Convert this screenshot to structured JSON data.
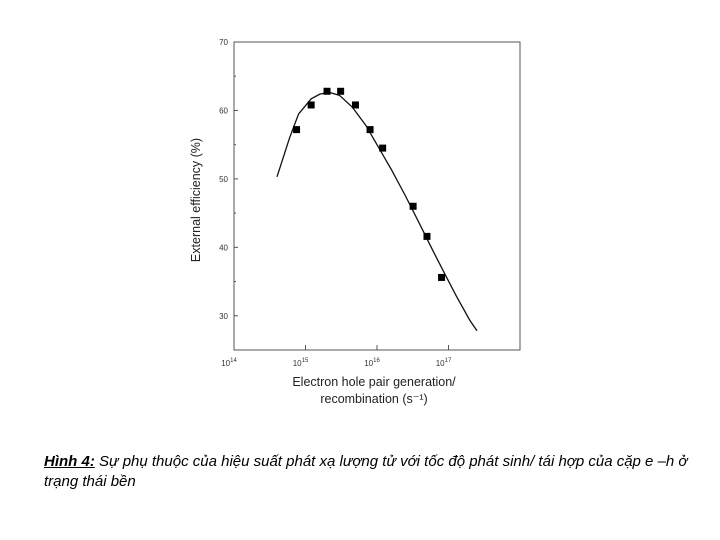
{
  "caption": {
    "label": "Hình 4:",
    "text": " Sự phụ thuộc của hiệu suất phát xạ lượng tử với tốc độ phát sinh/ tái hợp của cặp e –h ở trạng thái bền"
  },
  "chart_data": {
    "type": "scatter",
    "x_scale": "log",
    "xlabel_line1": "Electron  hole pair generation/",
    "xlabel_line2": "recombination (s⁻¹)",
    "ylabel": "External efficiency (%)",
    "xlim": [
      100000000000000.0,
      1e+18
    ],
    "ylim": [
      25,
      70
    ],
    "x_ticks": [
      {
        "value": 100000000000000.0,
        "base": "10",
        "exp": "14"
      },
      {
        "value": 1000000000000000.0,
        "base": "10",
        "exp": "15"
      },
      {
        "value": 1e+16,
        "base": "10",
        "exp": "16"
      },
      {
        "value": 1e+17,
        "base": "10",
        "exp": "17"
      }
    ],
    "y_ticks": [
      "30",
      "40",
      "50",
      "60",
      "70"
    ],
    "y_tick_values": [
      30,
      40,
      50,
      60,
      70
    ],
    "grid": false,
    "points": [
      {
        "x": 750000000000000.0,
        "y": 57.2
      },
      {
        "x": 1200000000000000.0,
        "y": 60.8
      },
      {
        "x": 2000000000000000.0,
        "y": 62.8
      },
      {
        "x": 3100000000000000.0,
        "y": 62.8
      },
      {
        "x": 5000000000000000.0,
        "y": 60.8
      },
      {
        "x": 8000000000000000.0,
        "y": 57.2
      },
      {
        "x": 1.2e+16,
        "y": 54.5
      },
      {
        "x": 3.2e+16,
        "y": 46.0
      },
      {
        "x": 5e+16,
        "y": 41.6
      },
      {
        "x": 8e+16,
        "y": 35.6
      }
    ],
    "fit_curve": [
      {
        "x": 400000000000000.0,
        "y": 50.3
      },
      {
        "x": 600000000000000.0,
        "y": 56.0
      },
      {
        "x": 800000000000000.0,
        "y": 59.5
      },
      {
        "x": 1200000000000000.0,
        "y": 61.7
      },
      {
        "x": 1600000000000000.0,
        "y": 62.4
      },
      {
        "x": 2200000000000000.0,
        "y": 62.6
      },
      {
        "x": 3000000000000000.0,
        "y": 62.2
      },
      {
        "x": 4500000000000000.0,
        "y": 60.5
      },
      {
        "x": 7000000000000000.0,
        "y": 57.8
      },
      {
        "x": 1e+16,
        "y": 55.0
      },
      {
        "x": 1.6e+16,
        "y": 51.3
      },
      {
        "x": 2.5e+16,
        "y": 47.5
      },
      {
        "x": 4e+16,
        "y": 43.3
      },
      {
        "x": 6e+16,
        "y": 39.6
      },
      {
        "x": 9e+16,
        "y": 36.0
      },
      {
        "x": 1.3e+17,
        "y": 32.8
      },
      {
        "x": 2e+17,
        "y": 29.3
      },
      {
        "x": 2.5e+17,
        "y": 27.8
      }
    ]
  }
}
